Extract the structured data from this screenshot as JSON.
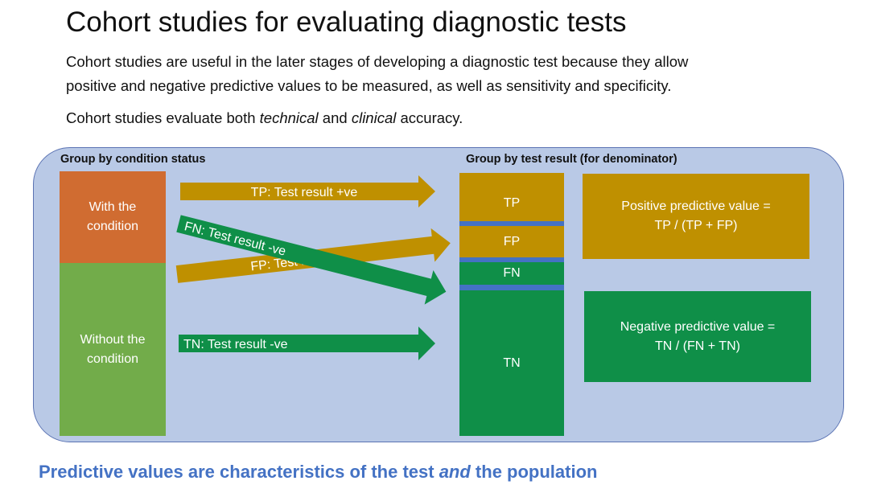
{
  "title": "Cohort studies for evaluating diagnostic tests",
  "paragraph1_line1": "Cohort studies are useful in the later stages of developing a diagnostic test because they allow",
  "paragraph1_line2": "positive and negative predictive values to be measured, as well as sensitivity and specificity.",
  "paragraph2": {
    "prefix": "Cohort studies evaluate both ",
    "technical": "technical",
    "and": " and ",
    "clinical": "clinical",
    "suffix": " accuracy."
  },
  "left_header": "Group by condition status",
  "right_header": "Group by test result (for denominator)",
  "with_condition_line1": "With the",
  "with_condition_line2": "condition",
  "without_condition_line1": "Without the",
  "without_condition_line2": "condition",
  "arrows": {
    "tp": "TP: Test result +ve",
    "fn": "FN: Test result -ve",
    "fp": "FP: Test result",
    "tn": "TN: Test result -ve"
  },
  "result_boxes": {
    "tp": "TP",
    "fp": "FP",
    "fn": "FN",
    "tn": "TN"
  },
  "ppv_line1": "Positive predictive value =",
  "ppv_line2": "TP / (TP + FP)",
  "npv_line1": "Negative predictive value =",
  "npv_line2": "TN / (FN + TN)",
  "footer": {
    "prefix": "Predictive values are characteristics  of the test ",
    "and": "and",
    "suffix": " the population"
  },
  "colors": {
    "orange": "#d06c31",
    "light_green": "#72ac4a",
    "gold": "#bf9000",
    "green": "#0f8f48",
    "panel": "#b9c9e6",
    "accent_blue": "#4472c4"
  }
}
